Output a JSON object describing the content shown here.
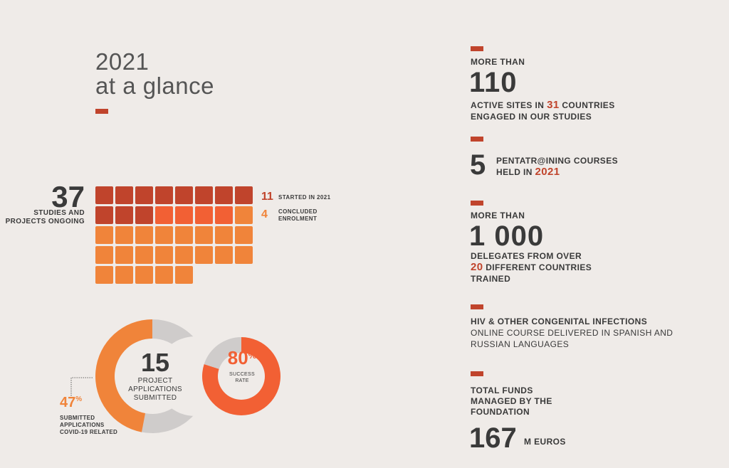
{
  "title": {
    "line1": "2021",
    "line2": "at a glance"
  },
  "studies": {
    "total": "37",
    "label_line1": "STUDIES AND",
    "label_line2": "PROJECTS ONGOING",
    "started_count": "11",
    "started_label": "STARTED IN 2021",
    "concluded_count": "4",
    "concluded_label_line1": "CONCLUDED",
    "concluded_label_line2": "ENROLMENT",
    "grid": {
      "total": 37,
      "started": 11,
      "concluded": 4,
      "per_row": 8
    }
  },
  "applications": {
    "number": "15",
    "label_line1": "PROJECT",
    "label_line2": "APPLICATIONS",
    "label_line3": "SUBMITTED",
    "covid_percent": "47",
    "covid_percent_value": 47,
    "percent_sign": "%",
    "covid_label_line1": "SUBMITTED",
    "covid_label_line2": "APPLICATIONS",
    "covid_label_line3": "COVID-19 RELATED",
    "success_percent": "80",
    "success_percent_value": 80,
    "success_label_line1": "SUCCESS",
    "success_label_line2": "RATE"
  },
  "right": {
    "sites": {
      "prefix": "MORE THAN",
      "number": "110",
      "line1_a": "ACTIVE SITES IN ",
      "line1_highlight": "31",
      "line1_b": " COUNTRIES",
      "line2": "ENGAGED IN OUR STUDIES"
    },
    "courses": {
      "number": "5",
      "line1": "PENTATR@INING COURSES",
      "line2_a": "HELD IN ",
      "line2_highlight": "2021"
    },
    "delegates": {
      "prefix": "MORE THAN",
      "number": "1 000",
      "line1": "DELEGATES FROM OVER",
      "line2_highlight": "20",
      "line2_b": " DIFFERENT COUNTRIES",
      "line3": "TRAINED"
    },
    "hiv": {
      "title": "HIV & OTHER CONGENITAL INFECTIONS",
      "line1": "ONLINE COURSE DELIVERED IN SPANISH AND",
      "line2": "RUSSIAN LANGUAGES"
    },
    "funds": {
      "line1": "TOTAL FUNDS",
      "line2": "MANAGED BY THE",
      "line3": "FOUNDATION",
      "number": "167",
      "unit": "M EUROS"
    }
  },
  "colors": {
    "dark_red": "#c0442c",
    "red_orange": "#f26034",
    "orange": "#f0843a",
    "grey": "#cfcccb",
    "text": "#3a3a3a",
    "background": "#efebe8"
  }
}
